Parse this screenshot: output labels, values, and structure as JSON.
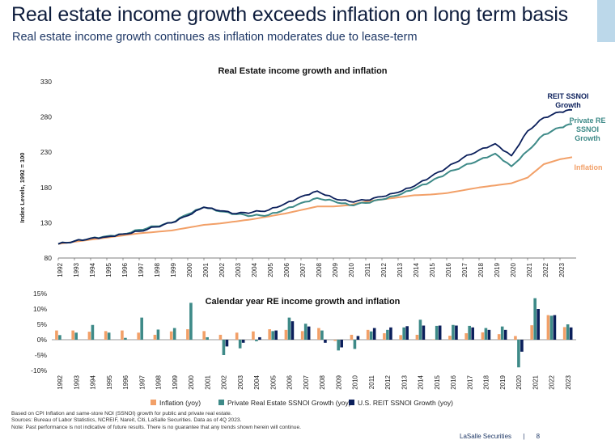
{
  "header": {
    "title": "Real estate income growth exceeds inflation on long term basis",
    "subtitle": "Real estate income growth continues as inflation moderates due to lease-term"
  },
  "colors": {
    "reit": "#0b1f5b",
    "private": "#3e8a88",
    "inflation": "#f2a068",
    "accent_bar": "#bcd8ea"
  },
  "footer": {
    "note1": "Based on CPI Inflation and same-store NOI (SSNOI) growth for public and private real estate.",
    "note2": "Sources: Bureau of Labor Statistics, NCREIF, Nareit, Citi, LaSalle Securities. Data as of 4Q 2023.",
    "note3": "Note: Past performance is not indicative of future results. There is no guarantee that any trends shown herein will continue.",
    "brand": "LaSalle Securities",
    "separator": "|",
    "page": "8"
  },
  "chart_data": [
    {
      "type": "line",
      "title": "Real Estate income growth and inflation",
      "ylabel": "Index Levels, 1992 = 100",
      "xlabel": "",
      "ylim": [
        80,
        330
      ],
      "yticks": [
        80,
        130,
        180,
        230,
        280,
        330
      ],
      "xlim": [
        1992,
        2024
      ],
      "categories": [
        "1992",
        "1993",
        "1994",
        "1995",
        "1996",
        "1997",
        "1998",
        "1999",
        "2000",
        "2001",
        "2002",
        "2003",
        "2004",
        "2005",
        "2006",
        "2007",
        "2008",
        "2009",
        "2010",
        "2011",
        "2012",
        "2013",
        "2014",
        "2015",
        "2016",
        "2017",
        "2018",
        "2019",
        "2020",
        "2021",
        "2022",
        "2023"
      ],
      "grid": false,
      "series": [
        {
          "name": "REIT SSNOI Growth",
          "key": "reit",
          "x": [
            1992,
            1993,
            1994,
            1995,
            1996,
            1997,
            1998,
            1999,
            2000,
            2001,
            2002,
            2003,
            2004,
            2005,
            2006,
            2007,
            2008,
            2009,
            2010,
            2011,
            2012,
            2013,
            2014,
            2015,
            2016,
            2017,
            2018,
            2019,
            2020,
            2021,
            2022,
            2023,
            2023.75
          ],
          "values": [
            100,
            104,
            108,
            110,
            114,
            118,
            124,
            130,
            140,
            152,
            147,
            143,
            145,
            148,
            157,
            167,
            175,
            165,
            160,
            162,
            167,
            173,
            182,
            195,
            208,
            222,
            233,
            242,
            225,
            260,
            279,
            287,
            290
          ]
        },
        {
          "name": "Private RE SSNOI Growth",
          "key": "private",
          "x": [
            1992,
            1993,
            1994,
            1995,
            1996,
            1997,
            1998,
            1999,
            2000,
            2001,
            2002,
            2003,
            2004,
            2005,
            2006,
            2007,
            2008,
            2009,
            2010,
            2011,
            2012,
            2013,
            2014,
            2015,
            2016,
            2017,
            2018,
            2019,
            2020,
            2021,
            2022,
            2023,
            2023.75
          ],
          "values": [
            100,
            104,
            108,
            111,
            114,
            120,
            125,
            130,
            142,
            152,
            146,
            142,
            140,
            141,
            149,
            158,
            165,
            161,
            155,
            158,
            163,
            169,
            178,
            188,
            200,
            210,
            219,
            228,
            210,
            232,
            255,
            265,
            270
          ]
        },
        {
          "name": "Inflation",
          "key": "inflation",
          "x": [
            1992,
            1993,
            1994,
            1995,
            1996,
            1997,
            1998,
            1999,
            2000,
            2001,
            2002,
            2003,
            2004,
            2005,
            2006,
            2007,
            2008,
            2009,
            2010,
            2011,
            2012,
            2013,
            2014,
            2015,
            2016,
            2017,
            2018,
            2019,
            2020,
            2021,
            2022,
            2023,
            2023.75
          ],
          "values": [
            100,
            103,
            106,
            109,
            112,
            115,
            117,
            119,
            123,
            127,
            129,
            132,
            135,
            139,
            143,
            148,
            153,
            153,
            155,
            160,
            163,
            166,
            169,
            170,
            172,
            176,
            180,
            183,
            186,
            194,
            213,
            220,
            223
          ]
        }
      ]
    },
    {
      "type": "bar",
      "title": "Calendar year RE income growth and inflation",
      "ylim": [
        -10,
        15
      ],
      "yticks": [
        -10,
        -5,
        0,
        5,
        10,
        15
      ],
      "ytick_labels": [
        "-10%",
        "-5%",
        "0%",
        "5%",
        "10%",
        "15%"
      ],
      "categories": [
        "1992",
        "1993",
        "1994",
        "1995",
        "1996",
        "1997",
        "1998",
        "1999",
        "2000",
        "2001",
        "2002",
        "2003",
        "2004",
        "2005",
        "2006",
        "2007",
        "2008",
        "2009",
        "2010",
        "2011",
        "2012",
        "2013",
        "2014",
        "2015",
        "2016",
        "2017",
        "2018",
        "2019",
        "2020",
        "2021",
        "2022",
        "2023"
      ],
      "legend_position": "bottom",
      "series": [
        {
          "name": "Inflation (yoy)",
          "key": "inflation",
          "values": [
            3,
            3,
            2.6,
            2.8,
            3,
            2.3,
            1.6,
            2.7,
            3.4,
            2.8,
            1.6,
            2.3,
            2.7,
            3.4,
            3.2,
            2.8,
            3.8,
            -0.4,
            1.6,
            3.2,
            2.1,
            1.5,
            1.6,
            0.1,
            1.3,
            2.1,
            2.4,
            1.8,
            1.2,
            4.7,
            8.0,
            4.1
          ]
        },
        {
          "name": "Private Real Estate SSNOI Growth (yoy)",
          "key": "private",
          "values": [
            1.5,
            2.3,
            4.8,
            2.3,
            0.6,
            7.2,
            3.3,
            3.8,
            12.0,
            0.8,
            -5.0,
            -2.8,
            -0.5,
            2.8,
            7.2,
            5.2,
            3.0,
            -3.5,
            -3.0,
            2.7,
            3.2,
            4.0,
            6.5,
            4.5,
            4.8,
            4.5,
            3.8,
            4.3,
            -9.0,
            13.5,
            7.8,
            5.0
          ]
        },
        {
          "name": "U.S. REIT SSNOI Growth (yoy)",
          "key": "reit",
          "values": [
            0,
            0,
            0,
            0,
            0,
            0,
            0,
            0,
            0,
            0,
            -2.2,
            -1.0,
            0.8,
            3.0,
            6.0,
            4.3,
            -1.0,
            -2.5,
            1.2,
            3.8,
            4.0,
            4.4,
            4.6,
            4.6,
            4.6,
            4.0,
            3.2,
            3.2,
            -3.9,
            10.0,
            8.0,
            4.0
          ]
        }
      ]
    }
  ]
}
